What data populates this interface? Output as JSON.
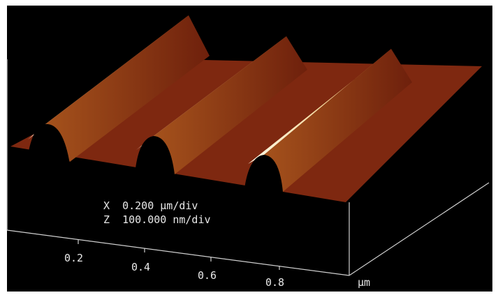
{
  "annotations": {
    "x_scale": "X  0.200 μm/div",
    "z_scale": "Z  100.000 nm/div"
  },
  "axis": {
    "ticks": [
      "0.2",
      "0.4",
      "0.6",
      "0.8"
    ],
    "unit": "μm"
  }
}
